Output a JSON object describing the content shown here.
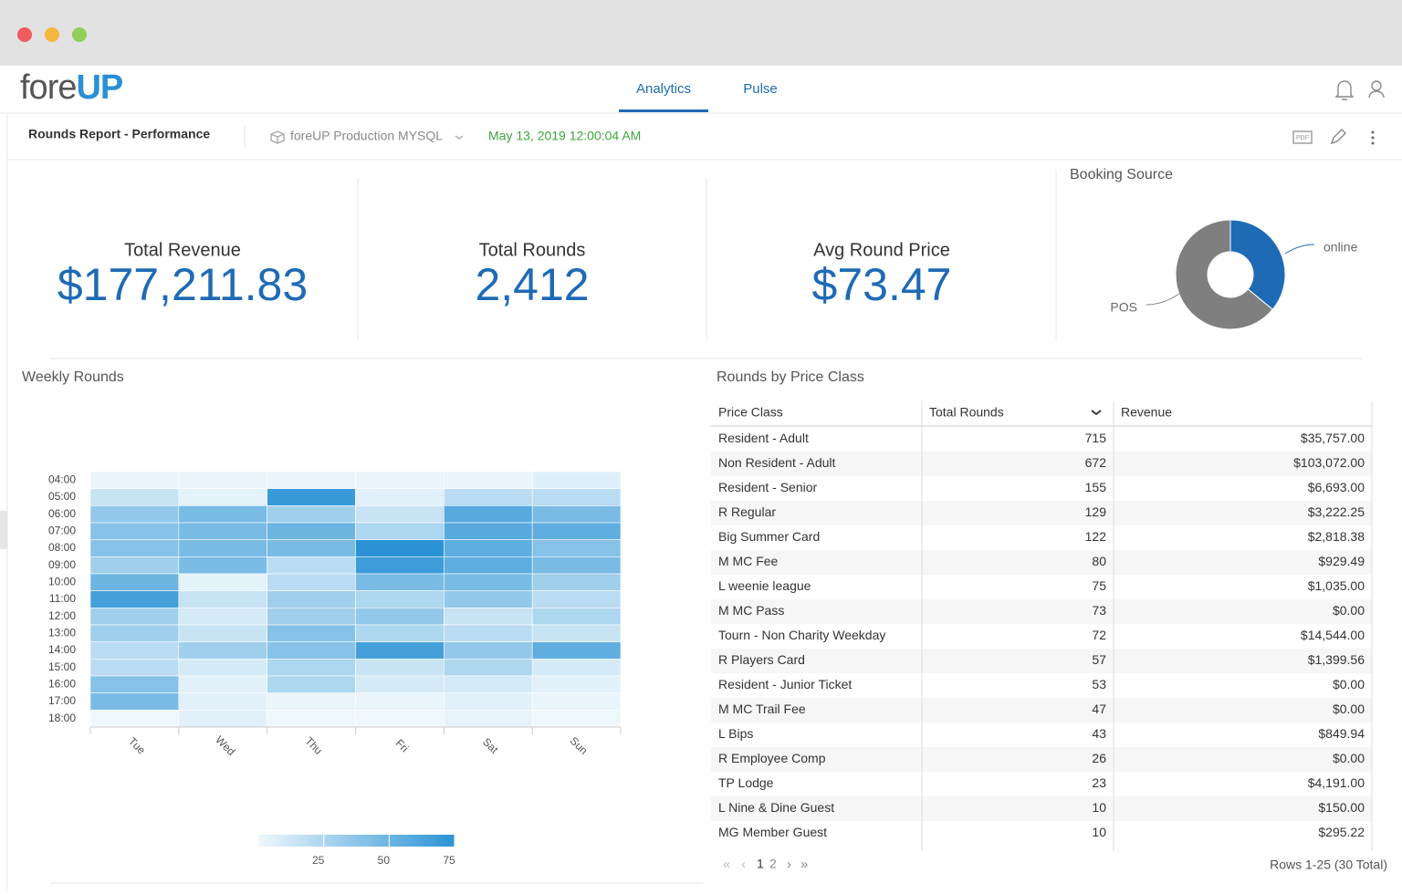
{
  "header": {
    "logo": {
      "prefix": "fore",
      "suffix": "UP"
    },
    "tabs": [
      "Analytics",
      "Pulse"
    ],
    "active_tab": 0
  },
  "toolbar": {
    "title": "Rounds Report - Performance",
    "source": "foreUP Production MYSQL",
    "timestamp": "May 13, 2019 12:00:04 AM",
    "export_label": "PDF"
  },
  "kpis": [
    {
      "label": "Total Revenue",
      "value": "$177,211.83"
    },
    {
      "label": "Total Rounds",
      "value": "2,412"
    },
    {
      "label": "Avg Round Price",
      "value": "$73.47"
    }
  ],
  "booking_source": {
    "type": "pie",
    "title": "Booking Source",
    "categories": [
      "online",
      "POS"
    ],
    "values": [
      36,
      64
    ],
    "colors": [
      "#1f6ab5",
      "#7f7f7f"
    ]
  },
  "weekly_rounds": {
    "type": "heatmap",
    "title": "Weekly Rounds",
    "x": [
      "Tue",
      "Wed",
      "Thu",
      "Fri",
      "Sat",
      "Sun"
    ],
    "y": [
      "04:00",
      "05:00",
      "06:00",
      "07:00",
      "08:00",
      "09:00",
      "10:00",
      "11:00",
      "12:00",
      "13:00",
      "14:00",
      "15:00",
      "16:00",
      "17:00",
      "18:00"
    ],
    "values": [
      [
        2,
        2,
        2,
        2,
        2,
        6
      ],
      [
        15,
        4,
        70,
        5,
        20,
        20
      ],
      [
        35,
        45,
        30,
        15,
        58,
        45
      ],
      [
        40,
        45,
        50,
        25,
        58,
        55
      ],
      [
        40,
        45,
        45,
        75,
        55,
        40
      ],
      [
        30,
        45,
        20,
        68,
        55,
        45
      ],
      [
        50,
        4,
        20,
        45,
        45,
        30
      ],
      [
        65,
        15,
        30,
        25,
        35,
        20
      ],
      [
        30,
        10,
        30,
        35,
        15,
        25
      ],
      [
        30,
        15,
        40,
        25,
        20,
        15
      ],
      [
        20,
        30,
        40,
        65,
        35,
        55
      ],
      [
        20,
        10,
        25,
        15,
        25,
        10
      ],
      [
        40,
        5,
        25,
        10,
        10,
        5
      ],
      [
        45,
        5,
        2,
        2,
        5,
        2
      ],
      [
        0,
        5,
        0,
        0,
        3,
        0
      ]
    ],
    "colorbar": {
      "lim": [
        0,
        75
      ],
      "ticks": [
        25,
        50,
        75
      ],
      "colors": [
        "#eef7fc",
        "#2b93d5"
      ]
    }
  },
  "price_class": {
    "title": "Rounds by Price Class",
    "columns": [
      "Price Class",
      "Total Rounds",
      "Revenue"
    ],
    "rows": [
      [
        "Resident - Adult",
        715,
        "$35,757.00"
      ],
      [
        "Non Resident - Adult",
        672,
        "$103,072.00"
      ],
      [
        "Resident - Senior",
        155,
        "$6,693.00"
      ],
      [
        "R Regular",
        129,
        "$3,222.25"
      ],
      [
        "Big Summer Card",
        122,
        "$2,818.38"
      ],
      [
        "M MC Fee",
        80,
        "$929.49"
      ],
      [
        "L weenie league",
        75,
        "$1,035.00"
      ],
      [
        "M MC Pass",
        73,
        "$0.00"
      ],
      [
        "Tourn - Non Charity Weekday",
        72,
        "$14,544.00"
      ],
      [
        "R Players Card",
        57,
        "$1,399.56"
      ],
      [
        "Resident - Junior Ticket",
        53,
        "$0.00"
      ],
      [
        "M MC Trail Fee",
        47,
        "$0.00"
      ],
      [
        "L Bips",
        43,
        "$849.94"
      ],
      [
        "R Employee Comp",
        26,
        "$0.00"
      ],
      [
        "TP Lodge",
        23,
        "$4,191.00"
      ],
      [
        "L Nine & Dine Guest",
        10,
        "$150.00"
      ],
      [
        "MG Member Guest",
        10,
        "$295.22"
      ]
    ],
    "pages": [
      "1",
      "2"
    ],
    "current_page": 0,
    "summary": "Rows 1-25 (30 Total)"
  }
}
